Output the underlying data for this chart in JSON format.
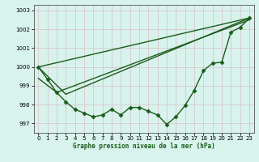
{
  "xlabel": "Graphe pression niveau de la mer (hPa)",
  "bg_color": "#d8f2ec",
  "grid_color": "#d8c8d0",
  "line_color": "#1a5c1a",
  "marker": "D",
  "marker_size": 2.5,
  "line_width": 1.0,
  "xlim": [
    -0.5,
    23.5
  ],
  "ylim": [
    996.5,
    1003.3
  ],
  "yticks": [
    997,
    998,
    999,
    1000,
    1001,
    1002,
    1003
  ],
  "xticks": [
    0,
    1,
    2,
    3,
    4,
    5,
    6,
    7,
    8,
    9,
    10,
    11,
    12,
    13,
    14,
    15,
    16,
    17,
    18,
    19,
    20,
    21,
    22,
    23
  ],
  "line_detailed": [
    1000.0,
    999.35,
    998.65,
    998.15,
    997.75,
    997.55,
    997.35,
    997.45,
    997.75,
    997.45,
    997.85,
    997.85,
    997.65,
    997.45,
    996.95,
    997.35,
    997.95,
    998.75,
    999.8,
    1000.2,
    1000.25,
    1001.85,
    1002.1,
    1002.6
  ],
  "smooth_line1_x": [
    0,
    23
  ],
  "smooth_line1_y": [
    1000.0,
    1002.6
  ],
  "smooth_line2_x": [
    0,
    3,
    23
  ],
  "smooth_line2_y": [
    1000.0,
    998.55,
    1002.6
  ],
  "smooth_line3_x": [
    0,
    2,
    23
  ],
  "smooth_line3_y": [
    999.4,
    998.65,
    1002.5
  ]
}
